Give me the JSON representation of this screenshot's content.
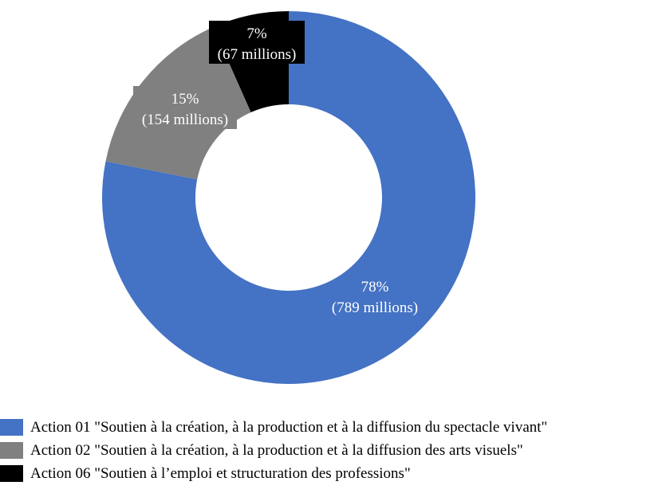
{
  "chart_data": {
    "type": "pie",
    "style": "donut",
    "start": "top, clockwise",
    "legend_position": "bottom-left",
    "series": [
      {
        "name": "Action 01 \"Soutien à la création, à la production et à la diffusion du spectacle vivant\"",
        "value": 789,
        "percent_label": "78%",
        "value_label": "(789 millions)",
        "color": "#4472C4"
      },
      {
        "name": "Action 02 \"Soutien à la création, à la production et à la diffusion des arts visuels\"",
        "value": 154,
        "percent_label": "15%",
        "value_label": "(154 millions)",
        "color": "#808080"
      },
      {
        "name": "Action 06 \"Soutien à l’emploi et structuration des professions\"",
        "value": 67,
        "percent_label": "7%",
        "value_label": "(67 millions)",
        "color": "#000000"
      }
    ]
  }
}
